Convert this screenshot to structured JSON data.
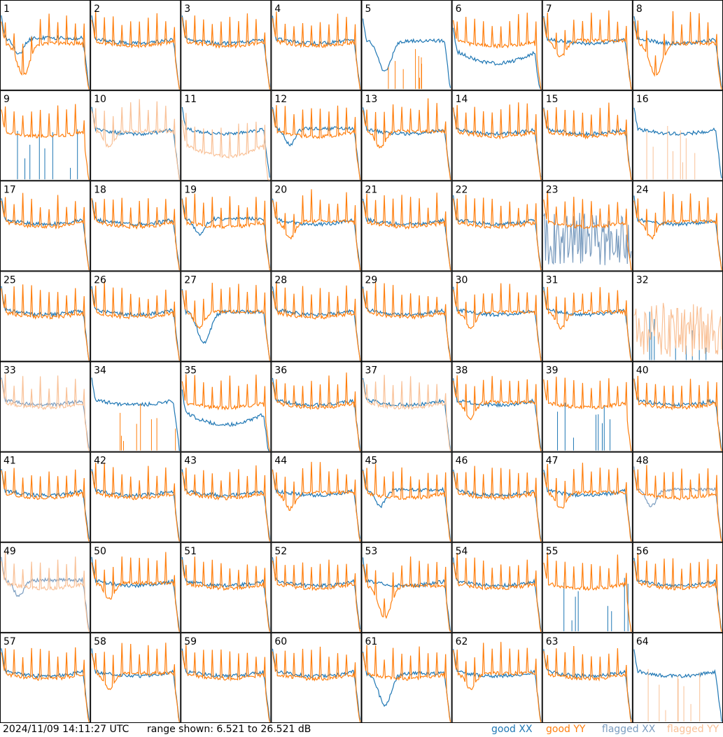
{
  "footer": {
    "timestamp": "2024/11/09 14:11:27 UTC",
    "range_text": "range shown: 6.521 to 26.521 dB",
    "legend": [
      {
        "label": "good XX",
        "color": "#1f77b4"
      },
      {
        "label": "good YY",
        "color": "#ff7f0e"
      },
      {
        "label": "flagged XX",
        "color": "#7a9cbf"
      },
      {
        "label": "flagged YY",
        "color": "#f9c197"
      }
    ]
  },
  "chart_data": {
    "type": "line",
    "yrange_db": [
      6.521,
      26.521
    ],
    "grid": {
      "rows": 8,
      "cols": 8
    },
    "panels": [
      {
        "id": "1",
        "xx": "good",
        "yy": "good",
        "xx_shape": "dip",
        "yy_shape": "deepdip"
      },
      {
        "id": "2",
        "xx": "good",
        "yy": "good",
        "xx_shape": "flat",
        "yy_shape": "flat"
      },
      {
        "id": "3",
        "xx": "good",
        "yy": "good",
        "xx_shape": "flat",
        "yy_shape": "flat"
      },
      {
        "id": "4",
        "xx": "good",
        "yy": "good",
        "xx_shape": "flat",
        "yy_shape": "flat"
      },
      {
        "id": "5",
        "xx": "good",
        "yy": "good",
        "xx_shape": "deepdip",
        "yy_shape": "spikes"
      },
      {
        "id": "6",
        "xx": "good",
        "yy": "good",
        "xx_shape": "bowl",
        "yy_shape": "flat"
      },
      {
        "id": "7",
        "xx": "good",
        "yy": "good",
        "xx_shape": "flat",
        "yy_shape": "dip"
      },
      {
        "id": "8",
        "xx": "good",
        "yy": "good",
        "xx_shape": "flat",
        "yy_shape": "deepdip"
      },
      {
        "id": "9",
        "xx": "good",
        "yy": "good",
        "xx_shape": "spikes",
        "yy_shape": "flat"
      },
      {
        "id": "10",
        "xx": "good",
        "yy": "flagged",
        "xx_shape": "flat",
        "yy_shape": "dip"
      },
      {
        "id": "11",
        "xx": "good",
        "yy": "flagged",
        "xx_shape": "flat",
        "yy_shape": "bowl"
      },
      {
        "id": "12",
        "xx": "good",
        "yy": "good",
        "xx_shape": "dip",
        "yy_shape": "flat"
      },
      {
        "id": "13",
        "xx": "good",
        "yy": "good",
        "xx_shape": "flat",
        "yy_shape": "dip"
      },
      {
        "id": "14",
        "xx": "good",
        "yy": "good",
        "xx_shape": "flat",
        "yy_shape": "flat"
      },
      {
        "id": "15",
        "xx": "good",
        "yy": "good",
        "xx_shape": "flat",
        "yy_shape": "flat"
      },
      {
        "id": "16",
        "xx": "good",
        "yy": "flagged",
        "xx_shape": "flat",
        "yy_shape": "spikes"
      },
      {
        "id": "17",
        "xx": "good",
        "yy": "good",
        "xx_shape": "flat",
        "yy_shape": "flat"
      },
      {
        "id": "18",
        "xx": "good",
        "yy": "good",
        "xx_shape": "flat",
        "yy_shape": "flat"
      },
      {
        "id": "19",
        "xx": "good",
        "yy": "good",
        "xx_shape": "dip",
        "yy_shape": "flat"
      },
      {
        "id": "20",
        "xx": "good",
        "yy": "good",
        "xx_shape": "flat",
        "yy_shape": "dip"
      },
      {
        "id": "21",
        "xx": "good",
        "yy": "good",
        "xx_shape": "flat",
        "yy_shape": "flat"
      },
      {
        "id": "22",
        "xx": "good",
        "yy": "good",
        "xx_shape": "flat",
        "yy_shape": "flat"
      },
      {
        "id": "23",
        "xx": "flagged",
        "yy": "good",
        "xx_shape": "noisy",
        "yy_shape": "flat"
      },
      {
        "id": "24",
        "xx": "good",
        "yy": "good",
        "xx_shape": "flat",
        "yy_shape": "dip"
      },
      {
        "id": "25",
        "xx": "good",
        "yy": "good",
        "xx_shape": "flat",
        "yy_shape": "flat"
      },
      {
        "id": "26",
        "xx": "good",
        "yy": "good",
        "xx_shape": "flat",
        "yy_shape": "flat"
      },
      {
        "id": "27",
        "xx": "good",
        "yy": "good",
        "xx_shape": "deepdip",
        "yy_shape": "dip"
      },
      {
        "id": "28",
        "xx": "good",
        "yy": "good",
        "xx_shape": "flat",
        "yy_shape": "flat"
      },
      {
        "id": "29",
        "xx": "good",
        "yy": "good",
        "xx_shape": "flat",
        "yy_shape": "flat"
      },
      {
        "id": "30",
        "xx": "good",
        "yy": "good",
        "xx_shape": "flat",
        "yy_shape": "dip"
      },
      {
        "id": "31",
        "xx": "good",
        "yy": "good",
        "xx_shape": "flat",
        "yy_shape": "dip"
      },
      {
        "id": "32",
        "xx": "good",
        "yy": "flagged",
        "xx_shape": "spikes",
        "yy_shape": "noisy"
      },
      {
        "id": "33",
        "xx": "flagged",
        "yy": "flagged",
        "xx_shape": "flat",
        "yy_shape": "flat"
      },
      {
        "id": "34",
        "xx": "good",
        "yy": "good",
        "xx_shape": "flat",
        "yy_shape": "spikes"
      },
      {
        "id": "35",
        "xx": "good",
        "yy": "good",
        "xx_shape": "bowl",
        "yy_shape": "flat"
      },
      {
        "id": "36",
        "xx": "good",
        "yy": "good",
        "xx_shape": "flat",
        "yy_shape": "flat"
      },
      {
        "id": "37",
        "xx": "good",
        "yy": "flagged",
        "xx_shape": "flat",
        "yy_shape": "flat"
      },
      {
        "id": "38",
        "xx": "good",
        "yy": "good",
        "xx_shape": "flat",
        "yy_shape": "dip"
      },
      {
        "id": "39",
        "xx": "good",
        "yy": "good",
        "xx_shape": "spikes",
        "yy_shape": "flat"
      },
      {
        "id": "40",
        "xx": "good",
        "yy": "good",
        "xx_shape": "flat",
        "yy_shape": "flat"
      },
      {
        "id": "41",
        "xx": "good",
        "yy": "good",
        "xx_shape": "flat",
        "yy_shape": "flat"
      },
      {
        "id": "42",
        "xx": "good",
        "yy": "good",
        "xx_shape": "flat",
        "yy_shape": "flat"
      },
      {
        "id": "43",
        "xx": "good",
        "yy": "good",
        "xx_shape": "flat",
        "yy_shape": "flat"
      },
      {
        "id": "44",
        "xx": "good",
        "yy": "good",
        "xx_shape": "flat",
        "yy_shape": "dip"
      },
      {
        "id": "45",
        "xx": "good",
        "yy": "good",
        "xx_shape": "dip",
        "yy_shape": "flat"
      },
      {
        "id": "46",
        "xx": "good",
        "yy": "good",
        "xx_shape": "flat",
        "yy_shape": "flat"
      },
      {
        "id": "47",
        "xx": "good",
        "yy": "good",
        "xx_shape": "flat",
        "yy_shape": "dip"
      },
      {
        "id": "48",
        "xx": "flagged",
        "yy": "good",
        "xx_shape": "dip",
        "yy_shape": "flat"
      },
      {
        "id": "49",
        "xx": "flagged",
        "yy": "flagged",
        "xx_shape": "dip",
        "yy_shape": "flat"
      },
      {
        "id": "50",
        "xx": "good",
        "yy": "good",
        "xx_shape": "flat",
        "yy_shape": "dip"
      },
      {
        "id": "51",
        "xx": "good",
        "yy": "good",
        "xx_shape": "flat",
        "yy_shape": "flat"
      },
      {
        "id": "52",
        "xx": "good",
        "yy": "good",
        "xx_shape": "flat",
        "yy_shape": "flat"
      },
      {
        "id": "53",
        "xx": "good",
        "yy": "good",
        "xx_shape": "flat",
        "yy_shape": "deepdip"
      },
      {
        "id": "54",
        "xx": "good",
        "yy": "good",
        "xx_shape": "flat",
        "yy_shape": "flat"
      },
      {
        "id": "55",
        "xx": "good",
        "yy": "good",
        "xx_shape": "spikes",
        "yy_shape": "flat"
      },
      {
        "id": "56",
        "xx": "good",
        "yy": "good",
        "xx_shape": "flat",
        "yy_shape": "flat"
      },
      {
        "id": "57",
        "xx": "good",
        "yy": "good",
        "xx_shape": "flat",
        "yy_shape": "flat"
      },
      {
        "id": "58",
        "xx": "good",
        "yy": "good",
        "xx_shape": "flat",
        "yy_shape": "dip"
      },
      {
        "id": "59",
        "xx": "good",
        "yy": "good",
        "xx_shape": "flat",
        "yy_shape": "flat"
      },
      {
        "id": "60",
        "xx": "good",
        "yy": "good",
        "xx_shape": "flat",
        "yy_shape": "flat"
      },
      {
        "id": "61",
        "xx": "good",
        "yy": "good",
        "xx_shape": "deepdip",
        "yy_shape": "flat"
      },
      {
        "id": "62",
        "xx": "good",
        "yy": "good",
        "xx_shape": "flat",
        "yy_shape": "dip"
      },
      {
        "id": "63",
        "xx": "good",
        "yy": "good",
        "xx_shape": "flat",
        "yy_shape": "flat"
      },
      {
        "id": "64",
        "xx": "good",
        "yy": "flagged",
        "xx_shape": "flat",
        "yy_shape": "spikes"
      }
    ]
  }
}
